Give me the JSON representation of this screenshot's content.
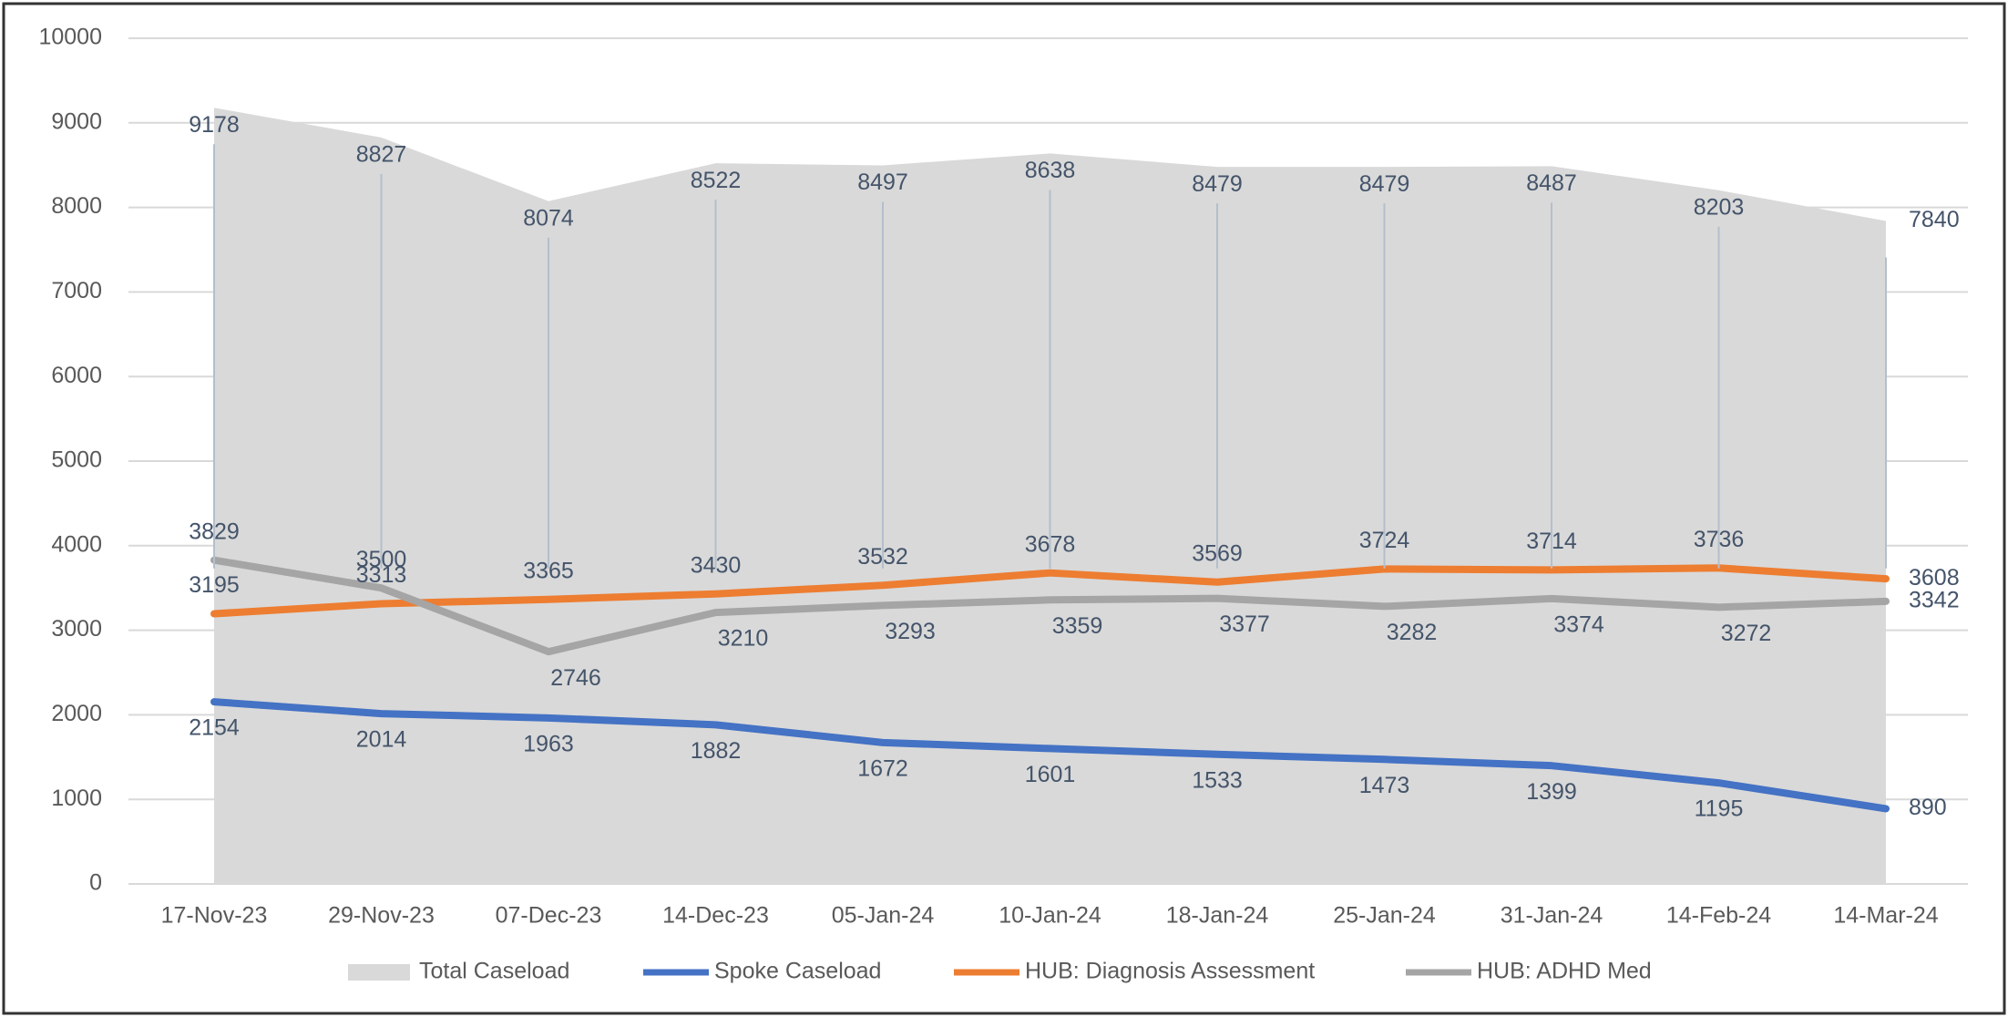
{
  "chart_data": {
    "type": "line",
    "categories": [
      "17-Nov-23",
      "29-Nov-23",
      "07-Dec-23",
      "14-Dec-23",
      "05-Jan-24",
      "10-Jan-24",
      "18-Jan-24",
      "25-Jan-24",
      "31-Jan-24",
      "14-Feb-24",
      "14-Mar-24"
    ],
    "series": [
      {
        "name": "Total Caseload",
        "color": "#d9d9d9",
        "style": "area",
        "values": [
          9178,
          8827,
          8074,
          8522,
          8497,
          8638,
          8479,
          8479,
          8487,
          8203,
          7840
        ]
      },
      {
        "name": "Spoke Caseload",
        "color": "#4472c4",
        "values": [
          2154,
          2014,
          1963,
          1882,
          1672,
          1601,
          1533,
          1473,
          1399,
          1195,
          890
        ]
      },
      {
        "name": "HUB: Diagnosis Assessment",
        "color": "#ed7d31",
        "values": [
          3195,
          3313,
          3365,
          3430,
          3532,
          3678,
          3569,
          3724,
          3714,
          3736,
          3608
        ]
      },
      {
        "name": "HUB: ADHD Med",
        "color": "#a5a5a5",
        "values": [
          3829,
          3500,
          2746,
          3210,
          3293,
          3359,
          3377,
          3282,
          3374,
          3272,
          3342
        ]
      }
    ],
    "ylim": [
      0,
      10000
    ],
    "yticks": [
      0,
      1000,
      2000,
      3000,
      4000,
      5000,
      6000,
      7000,
      8000,
      9000,
      10000
    ],
    "grid": true,
    "legend": "bottom"
  }
}
